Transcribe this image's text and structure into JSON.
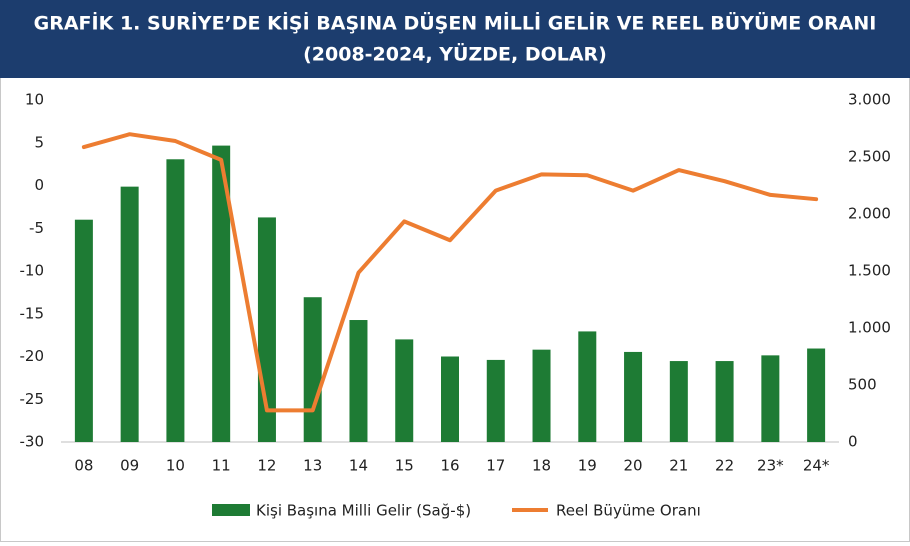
{
  "chart_data": {
    "type": "bar_line",
    "title": "GRAFİK 1. SURİYE’DE KİŞİ BAŞINA DÜŞEN MİLLİ GELİR VE REEL BÜYÜME ORANI",
    "subtitle": "(2008-2024, YÜZDE, DOLAR)",
    "categories": [
      "08",
      "09",
      "10",
      "11",
      "12",
      "13",
      "14",
      "15",
      "16",
      "17",
      "18",
      "19",
      "20",
      "21",
      "22",
      "23*",
      "24*"
    ],
    "series": [
      {
        "name": "Kişi Başına Milli Gelir (Sağ-$)",
        "color": "#1e7b34",
        "type": "bar",
        "axis": "y2",
        "values": [
          1950,
          2240,
          2480,
          2600,
          1970,
          1270,
          1070,
          900,
          750,
          720,
          810,
          970,
          790,
          710,
          710,
          760,
          820
        ]
      },
      {
        "name": "Reel Büyüme Oranı",
        "color": "#ed7d31",
        "type": "line",
        "axis": "y",
        "values": [
          4.5,
          6.0,
          5.2,
          3.0,
          -26.3,
          -26.3,
          -10.2,
          -4.2,
          -6.4,
          -0.6,
          1.3,
          1.2,
          -0.6,
          1.8,
          0.5,
          -1.1,
          -1.6
        ]
      }
    ],
    "ylim": [
      -30,
      10
    ],
    "yticks": [
      -30,
      -25,
      -20,
      -15,
      -10,
      -5,
      0,
      5,
      10
    ],
    "y2lim": [
      0,
      3000
    ],
    "y2ticks": [
      0,
      {
        "value": 500,
        "label": "500"
      },
      {
        "value": 1000,
        "label": "1.000"
      },
      {
        "value": 1500,
        "label": "1.500"
      },
      {
        "value": 2000,
        "label": "2.000"
      },
      {
        "value": 2500,
        "label": "2.500"
      },
      {
        "value": 3000,
        "label": "3.000"
      }
    ],
    "header_color": "#1c3d6e"
  }
}
